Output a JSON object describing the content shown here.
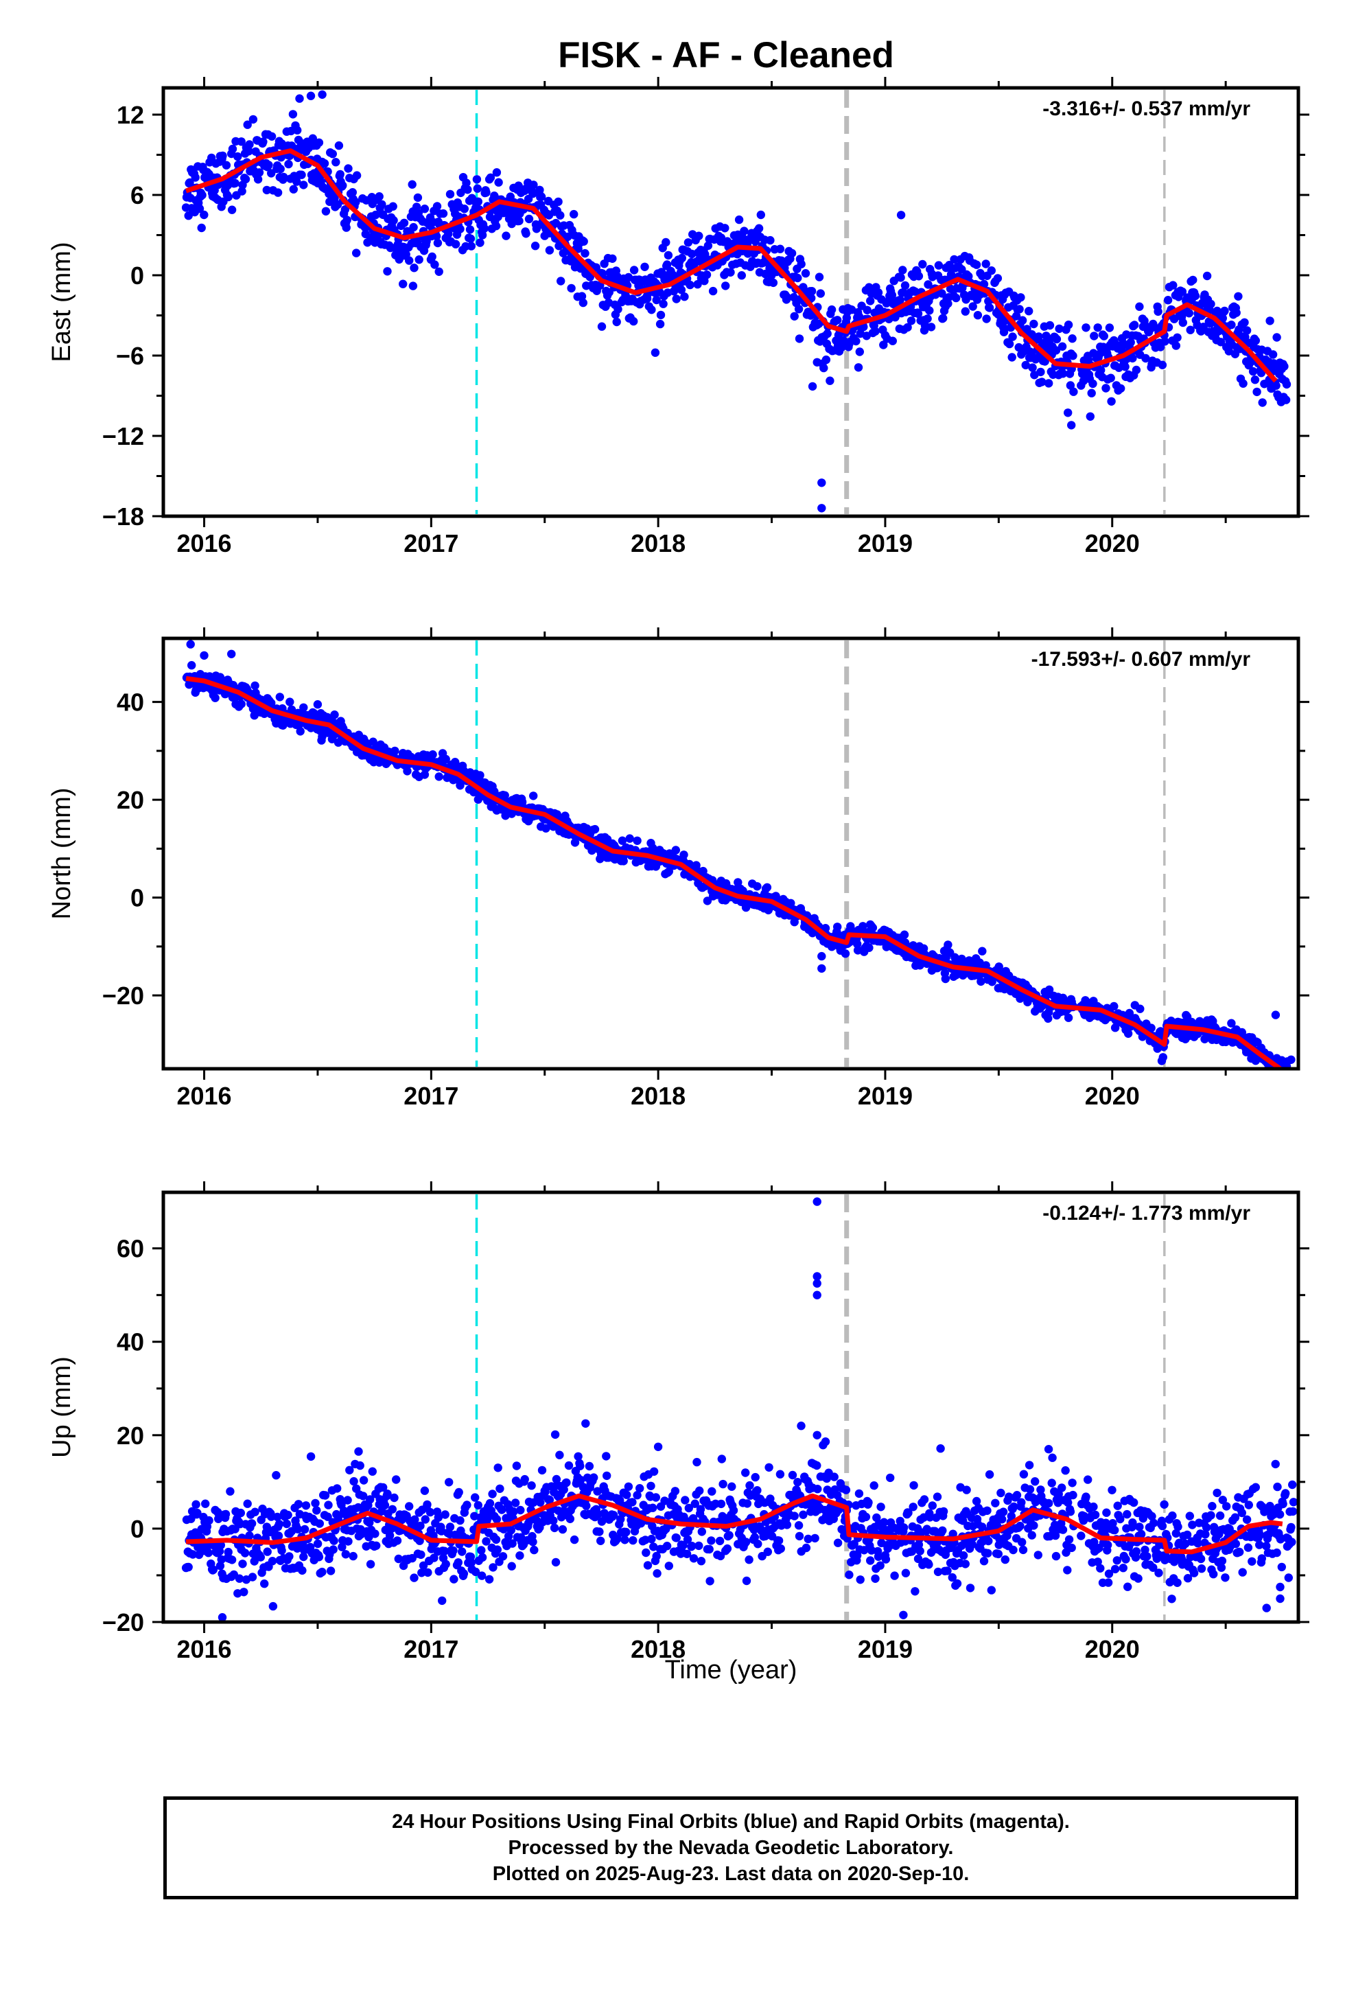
{
  "chart_data": {
    "title": "FISK  - AF - Cleaned",
    "type": "scatter",
    "xlim": [
      2015.82,
      2020.82
    ],
    "x_tick_labels": [
      "2016",
      "2017",
      "2018",
      "2019",
      "2020"
    ],
    "xlabel": "Time (year)",
    "marker_color": "#0000ff",
    "fit_line_color": "#ff0000",
    "vertical_lines": [
      {
        "x": 2017.2,
        "style": "dashed",
        "color": "#00e5e5",
        "width": "thin"
      },
      {
        "x": 2018.83,
        "style": "dashed",
        "color": "#bbbbbb",
        "width": "thick"
      },
      {
        "x": 2020.23,
        "style": "dashed",
        "color": "#bbbbbb",
        "width": "thin"
      }
    ],
    "panels": [
      {
        "name": "east",
        "ylabel": "East (mm)",
        "ylim": [
          -18,
          14
        ],
        "y_ticks": [
          12,
          6,
          0,
          -6,
          -12,
          -18
        ],
        "y_tick_labels": [
          "12",
          "6",
          "0",
          "−6",
          "−12",
          "−18"
        ],
        "rate_label": "-3.316+/- 0.537 mm/yr",
        "fit": [
          [
            2015.92,
            6.3
          ],
          [
            2016.08,
            7.2
          ],
          [
            2016.25,
            8.8
          ],
          [
            2016.38,
            9.3
          ],
          [
            2016.5,
            8.2
          ],
          [
            2016.62,
            5.5
          ],
          [
            2016.75,
            3.5
          ],
          [
            2016.88,
            2.8
          ],
          [
            2017.0,
            3.2
          ],
          [
            2017.2,
            4.5
          ],
          [
            2017.3,
            5.5
          ],
          [
            2017.45,
            5.0
          ],
          [
            2017.6,
            2.2
          ],
          [
            2017.75,
            -0.4
          ],
          [
            2017.9,
            -1.3
          ],
          [
            2018.05,
            -0.7
          ],
          [
            2018.2,
            0.7
          ],
          [
            2018.35,
            2.1
          ],
          [
            2018.45,
            2.0
          ],
          [
            2018.6,
            -0.8
          ],
          [
            2018.75,
            -3.8
          ],
          [
            2018.83,
            -4.2
          ],
          [
            2018.84,
            -3.8
          ],
          [
            2019.0,
            -3.0
          ],
          [
            2019.15,
            -1.6
          ],
          [
            2019.32,
            -0.3
          ],
          [
            2019.45,
            -1.2
          ],
          [
            2019.6,
            -4.3
          ],
          [
            2019.75,
            -6.6
          ],
          [
            2019.9,
            -6.8
          ],
          [
            2020.05,
            -6.0
          ],
          [
            2020.15,
            -5.0
          ],
          [
            2020.23,
            -4.2
          ],
          [
            2020.24,
            -3.0
          ],
          [
            2020.33,
            -2.2
          ],
          [
            2020.45,
            -3.2
          ],
          [
            2020.6,
            -5.6
          ],
          [
            2020.72,
            -7.9
          ]
        ],
        "scatter_sigma": 1.2,
        "outliers": [
          [
            2016.42,
            13.2
          ],
          [
            2016.47,
            13.4
          ],
          [
            2016.52,
            13.5
          ],
          [
            2018.72,
            -15.5
          ],
          [
            2018.72,
            -17.4
          ],
          [
            2018.68,
            -8.3
          ],
          [
            2018.7,
            -6.5
          ],
          [
            2019.07,
            4.5
          ],
          [
            2019.82,
            -11.2
          ],
          [
            2016.92,
            -0.8
          ]
        ]
      },
      {
        "name": "north",
        "ylabel": "North (mm)",
        "ylim": [
          -35,
          53
        ],
        "y_ticks": [
          40,
          20,
          0,
          -20
        ],
        "y_tick_labels": [
          "40",
          "20",
          "0",
          "−20"
        ],
        "rate_label": "-17.593+/- 0.607 mm/yr",
        "fit": [
          [
            2015.92,
            44.8
          ],
          [
            2016.0,
            44.3
          ],
          [
            2016.15,
            42.0
          ],
          [
            2016.3,
            38.2
          ],
          [
            2016.45,
            36.2
          ],
          [
            2016.55,
            35.3
          ],
          [
            2016.7,
            30.5
          ],
          [
            2016.85,
            28.0
          ],
          [
            2017.0,
            27.2
          ],
          [
            2017.12,
            25.2
          ],
          [
            2017.25,
            21.0
          ],
          [
            2017.35,
            18.5
          ],
          [
            2017.5,
            17.0
          ],
          [
            2017.65,
            13.0
          ],
          [
            2017.8,
            9.5
          ],
          [
            2017.95,
            8.6
          ],
          [
            2018.1,
            6.8
          ],
          [
            2018.25,
            2.0
          ],
          [
            2018.35,
            0.3
          ],
          [
            2018.5,
            -0.8
          ],
          [
            2018.65,
            -4.5
          ],
          [
            2018.75,
            -8.2
          ],
          [
            2018.83,
            -9.2
          ],
          [
            2018.84,
            -7.6
          ],
          [
            2019.0,
            -8.0
          ],
          [
            2019.15,
            -12.0
          ],
          [
            2019.3,
            -14.2
          ],
          [
            2019.45,
            -15.0
          ],
          [
            2019.6,
            -18.8
          ],
          [
            2019.75,
            -22.2
          ],
          [
            2019.95,
            -23.0
          ],
          [
            2020.1,
            -26.0
          ],
          [
            2020.23,
            -30.0
          ],
          [
            2020.24,
            -26.3
          ],
          [
            2020.4,
            -27.0
          ],
          [
            2020.55,
            -28.5
          ],
          [
            2020.65,
            -32.0
          ],
          [
            2020.74,
            -35.0
          ]
        ],
        "scatter_sigma": 1.1,
        "outliers": [
          [
            2015.94,
            51.8
          ],
          [
            2016.0,
            49.5
          ],
          [
            2016.12,
            49.8
          ],
          [
            2016.5,
            39.5
          ],
          [
            2017.45,
            20.8
          ],
          [
            2018.72,
            -14.5
          ],
          [
            2018.72,
            -12.0
          ],
          [
            2020.72,
            -24.0
          ],
          [
            2020.1,
            -22.0
          ]
        ]
      },
      {
        "name": "up",
        "ylabel": "Up (mm)",
        "ylim": [
          -20,
          72
        ],
        "y_ticks": [
          60,
          40,
          20,
          0,
          -20
        ],
        "y_tick_labels": [
          "60",
          "40",
          "20",
          "0",
          "−20"
        ],
        "rate_label": "-0.124+/- 1.773 mm/yr",
        "fit": [
          [
            2015.92,
            -2.8
          ],
          [
            2016.1,
            -2.5
          ],
          [
            2016.3,
            -3.0
          ],
          [
            2016.45,
            -2.0
          ],
          [
            2016.6,
            1.0
          ],
          [
            2016.72,
            3.3
          ],
          [
            2016.85,
            1.0
          ],
          [
            2017.0,
            -2.5
          ],
          [
            2017.2,
            -2.8
          ],
          [
            2017.21,
            0.5
          ],
          [
            2017.35,
            1.0
          ],
          [
            2017.5,
            4.5
          ],
          [
            2017.65,
            7.0
          ],
          [
            2017.8,
            5.0
          ],
          [
            2017.95,
            2.0
          ],
          [
            2018.1,
            1.0
          ],
          [
            2018.3,
            0.5
          ],
          [
            2018.45,
            2.0
          ],
          [
            2018.6,
            5.5
          ],
          [
            2018.68,
            7.0
          ],
          [
            2018.83,
            4.5
          ],
          [
            2018.84,
            -1.3
          ],
          [
            2019.0,
            -1.8
          ],
          [
            2019.15,
            -2.0
          ],
          [
            2019.3,
            -2.2
          ],
          [
            2019.5,
            -0.5
          ],
          [
            2019.65,
            4.0
          ],
          [
            2019.8,
            2.0
          ],
          [
            2019.95,
            -2.0
          ],
          [
            2020.1,
            -2.3
          ],
          [
            2020.23,
            -2.5
          ],
          [
            2020.24,
            -4.8
          ],
          [
            2020.35,
            -5.0
          ],
          [
            2020.5,
            -3.0
          ],
          [
            2020.6,
            0.5
          ],
          [
            2020.7,
            1.3
          ],
          [
            2020.75,
            1.0
          ]
        ],
        "scatter_sigma": 4.5,
        "outliers": [
          [
            2018.7,
            70.0
          ],
          [
            2018.7,
            54.0
          ],
          [
            2018.7,
            52.5
          ],
          [
            2018.7,
            50.0
          ],
          [
            2018.63,
            22.0
          ],
          [
            2017.68,
            22.5
          ],
          [
            2018.7,
            20.0
          ],
          [
            2016.08,
            -19.0
          ],
          [
            2019.08,
            -18.5
          ],
          [
            2020.68,
            -17.0
          ],
          [
            2020.74,
            -12.5
          ],
          [
            2020.74,
            -15.0
          ],
          [
            2016.68,
            16.5
          ],
          [
            2019.72,
            17.0
          ],
          [
            2018.0,
            17.5
          ]
        ]
      }
    ]
  },
  "footer": {
    "line1": "24 Hour Positions Using Final Orbits (blue) and Rapid Orbits (magenta).",
    "line2": "Processed by the Nevada Geodetic Laboratory.",
    "line3": "Plotted on 2025-Aug-23. Last data on 2020-Sep-10."
  }
}
